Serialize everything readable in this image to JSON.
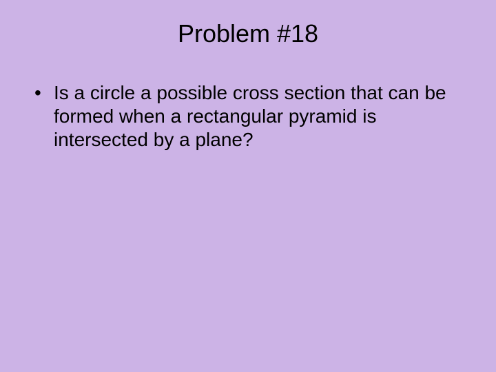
{
  "slide": {
    "background_color": "#ccb3e6",
    "text_color": "#000000",
    "title": "Problem #18",
    "title_fontsize": 36,
    "body_fontsize": 28,
    "font_family": "Arial",
    "bullets": [
      {
        "text": "Is a circle a possible cross section that can be formed when a rectangular pyramid is intersected by a plane?"
      }
    ]
  }
}
